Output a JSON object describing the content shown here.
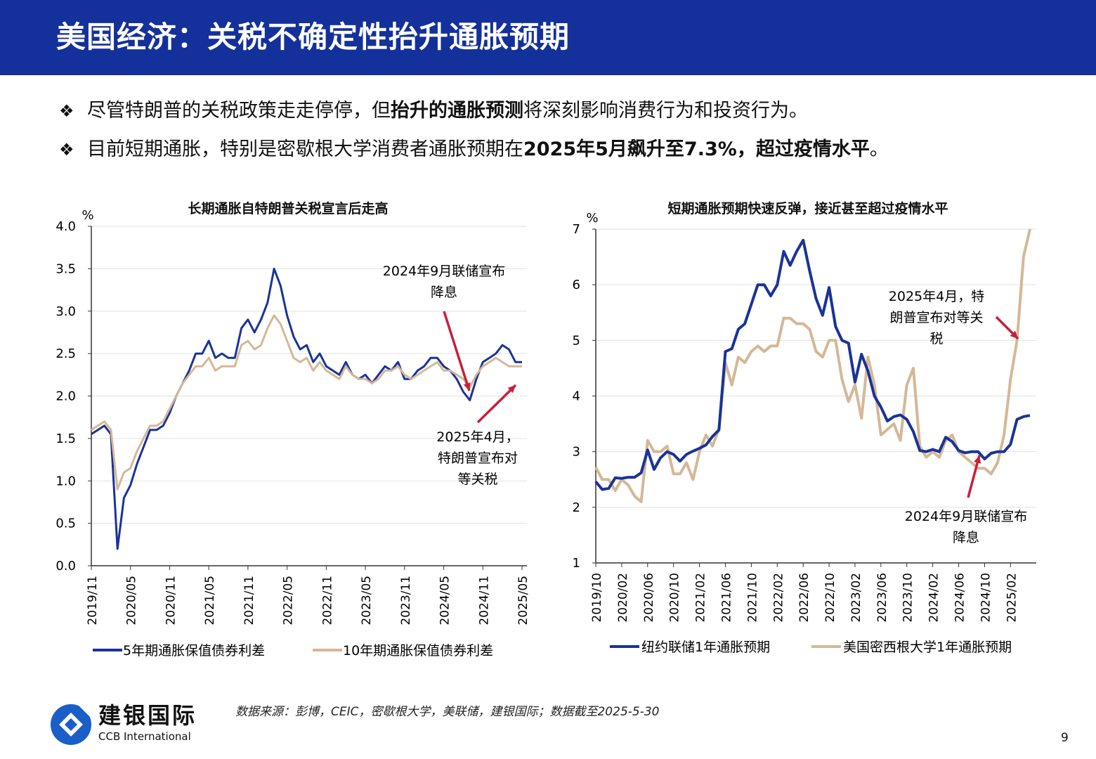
{
  "header": {
    "title": "美国经济：关税不确定性抬升通胀预期"
  },
  "bullets": [
    {
      "icon": "diamond-bullet-icon",
      "pre": "尽管特朗普的关税政策走走停停，但",
      "bold": "抬升的通胀预测",
      "post": "将深刻影响消费行为和投资行为。"
    },
    {
      "icon": "diamond-bullet-icon",
      "pre": "目前短期通胀，特别是密歇根大学消费者通胀预期在",
      "bold": "2025年5月飙升至7.3%，超过疫情水平",
      "post": "。"
    }
  ],
  "colors": {
    "header": "#14309a",
    "series1": "#1a3399",
    "series2": "#d4b896",
    "arrow": "#c8203a"
  },
  "chart_data": [
    {
      "type": "line",
      "title": "长期通胀自特朗普关税宣言后走高",
      "ylabel": "%",
      "ylim": [
        0,
        4.0
      ],
      "yticks": [
        "0.0",
        "0.5",
        "1.0",
        "1.5",
        "2.0",
        "2.5",
        "3.0",
        "3.5",
        "4.0"
      ],
      "xticks": [
        "2019/11",
        "2020/05",
        "2020/11",
        "2021/05",
        "2021/11",
        "2022/05",
        "2022/11",
        "2023/05",
        "2023/11",
        "2024/05",
        "2024/11",
        "2025/05"
      ],
      "x_range": [
        "2019/11",
        "2025/05"
      ],
      "grid": true,
      "legend": "bottom",
      "series": [
        {
          "name": "5年期通胀保值债券利差",
          "values": [
            1.55,
            1.6,
            1.65,
            1.55,
            0.2,
            0.8,
            0.95,
            1.2,
            1.4,
            1.6,
            1.6,
            1.65,
            1.8,
            2.0,
            2.15,
            2.3,
            2.5,
            2.5,
            2.65,
            2.45,
            2.5,
            2.45,
            2.45,
            2.8,
            2.9,
            2.75,
            2.9,
            3.1,
            3.5,
            3.3,
            2.95,
            2.7,
            2.55,
            2.6,
            2.4,
            2.5,
            2.35,
            2.3,
            2.25,
            2.4,
            2.25,
            2.2,
            2.25,
            2.15,
            2.25,
            2.35,
            2.3,
            2.4,
            2.2,
            2.2,
            2.3,
            2.35,
            2.45,
            2.45,
            2.35,
            2.3,
            2.2,
            2.05,
            1.95,
            2.2,
            2.4,
            2.45,
            2.5,
            2.6,
            2.55,
            2.4,
            2.4
          ]
        },
        {
          "name": "10年期通胀保值债券利差",
          "values": [
            1.6,
            1.65,
            1.7,
            1.6,
            0.9,
            1.1,
            1.15,
            1.35,
            1.5,
            1.65,
            1.65,
            1.7,
            1.85,
            2.0,
            2.15,
            2.25,
            2.35,
            2.35,
            2.45,
            2.3,
            2.35,
            2.35,
            2.35,
            2.6,
            2.65,
            2.55,
            2.6,
            2.8,
            2.95,
            2.85,
            2.65,
            2.45,
            2.4,
            2.45,
            2.3,
            2.4,
            2.3,
            2.25,
            2.2,
            2.35,
            2.25,
            2.2,
            2.2,
            2.15,
            2.2,
            2.3,
            2.3,
            2.35,
            2.25,
            2.2,
            2.25,
            2.3,
            2.35,
            2.4,
            2.3,
            2.3,
            2.25,
            2.2,
            2.1,
            2.25,
            2.35,
            2.4,
            2.45,
            2.4,
            2.35,
            2.35,
            2.35
          ]
        }
      ],
      "annotations": [
        {
          "lines": [
            "2024年9月联储宣布",
            "降息"
          ]
        },
        {
          "lines": [
            "2025年4月，",
            "特朗普宣布对",
            "等关税"
          ]
        }
      ]
    },
    {
      "type": "line",
      "title": "短期通胀预期快速反弹，接近甚至超过疫情水平",
      "ylabel": "%",
      "ylim": [
        1,
        7
      ],
      "yticks": [
        "1",
        "2",
        "3",
        "4",
        "5",
        "6",
        "7"
      ],
      "xticks": [
        "2019/10",
        "2020/02",
        "2020/06",
        "2020/10",
        "2021/02",
        "2021/06",
        "2021/10",
        "2022/02",
        "2022/06",
        "2022/10",
        "2023/02",
        "2023/06",
        "2023/10",
        "2024/02",
        "2024/06",
        "2024/10",
        "2025/02"
      ],
      "x_range": [
        "2019/10",
        "2025/05"
      ],
      "grid": true,
      "legend": "bottom",
      "series": [
        {
          "name": "纽约联储1年通胀预期",
          "values": [
            2.46,
            2.32,
            2.34,
            2.53,
            2.52,
            2.54,
            2.54,
            2.62,
            3.03,
            2.68,
            2.89,
            3.0,
            2.95,
            2.83,
            2.95,
            3.01,
            3.06,
            3.12,
            3.27,
            3.39,
            4.8,
            4.85,
            5.2,
            5.3,
            5.65,
            6.0,
            6.0,
            5.8,
            6.0,
            6.6,
            6.35,
            6.6,
            6.8,
            6.25,
            5.75,
            5.45,
            5.95,
            5.25,
            5.0,
            4.95,
            4.25,
            4.75,
            4.45,
            4.0,
            3.8,
            3.55,
            3.63,
            3.66,
            3.58,
            3.36,
            3.02,
            3.0,
            3.04,
            3.0,
            3.26,
            3.18,
            3.02,
            2.98,
            3.0,
            3.0,
            2.87,
            2.97,
            3.0,
            3.0,
            3.13,
            3.58,
            3.63,
            3.65
          ]
        },
        {
          "name": "美国密西根大学1年通胀预期",
          "values": [
            2.72,
            2.5,
            2.5,
            2.3,
            2.5,
            2.4,
            2.2,
            2.1,
            3.2,
            3.0,
            3.0,
            3.1,
            2.6,
            2.6,
            2.8,
            2.5,
            3.0,
            3.3,
            3.1,
            3.4,
            4.6,
            4.2,
            4.7,
            4.6,
            4.8,
            4.9,
            4.8,
            4.9,
            4.9,
            5.4,
            5.4,
            5.3,
            5.3,
            5.2,
            4.8,
            4.7,
            5.0,
            5.0,
            4.3,
            3.9,
            4.2,
            3.6,
            4.7,
            4.2,
            3.3,
            3.4,
            3.5,
            3.2,
            4.2,
            4.5,
            3.1,
            2.9,
            3.0,
            2.9,
            3.2,
            3.3,
            3.0,
            2.9,
            2.8,
            2.7,
            2.7,
            2.6,
            2.8,
            3.3,
            4.3,
            5.0,
            6.5,
            7.3
          ]
        }
      ],
      "annotations": [
        {
          "lines": [
            "2025年4月，特",
            "朗普宣布对等关",
            "税"
          ]
        },
        {
          "lines": [
            "2024年9月联储宣布",
            "降息"
          ]
        }
      ]
    }
  ],
  "footer": {
    "source": "数据来源：彭博，CEIC，密歇根大学，美联储，建银国际；数据截至2025-5-30",
    "logo_cn": "建银国际",
    "logo_en": "CCB International",
    "page": "9"
  }
}
